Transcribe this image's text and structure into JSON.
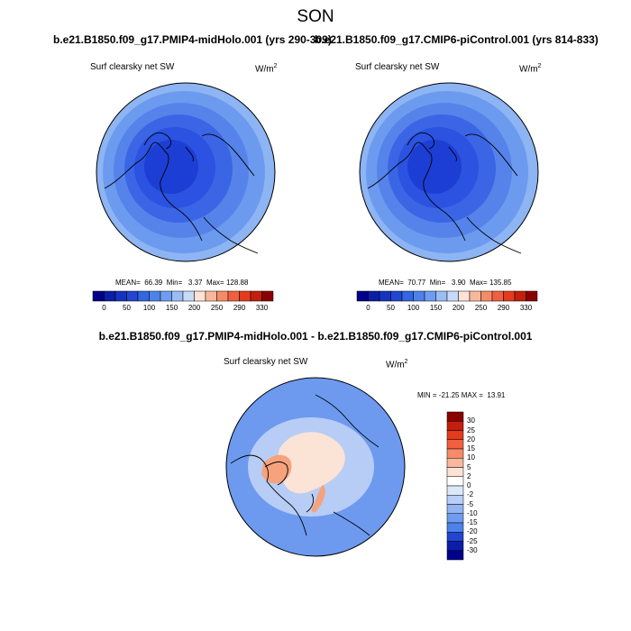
{
  "figure": {
    "title": "SON",
    "left_case": "b.e21.B1850.f09_g17.PMIP4-midHolo.001 (yrs 290-309)",
    "right_case": "b.e21.B1850.f09_g17.CMIP6-piControl.001 (yrs 814-833)",
    "diff_title": "b.e21.B1850.f09_g17.PMIP4-midHolo.001 - b.e21.B1850.f09_g17.CMIP6-piControl.001"
  },
  "panels": {
    "left": {
      "label": "Surf clearsky net SW",
      "units": "W/m",
      "units_exp": "2",
      "stats": "MEAN=  66.39  Min=   3.37  Max= 128.88"
    },
    "right": {
      "label": "Surf clearsky net SW",
      "units": "W/m",
      "units_exp": "2",
      "stats": "MEAN=  70.77  Min=   3.90  Max= 135.85"
    },
    "diff": {
      "label": "Surf clearsky net SW",
      "units": "W/m",
      "units_exp": "2",
      "stats": "MIN = -21.25 MAX =  13.91"
    }
  },
  "colorbars": {
    "main": {
      "colors": [
        "#00008b",
        "#0a1ea8",
        "#1533c0",
        "#2346d2",
        "#3366e0",
        "#4d82ea",
        "#6e9cf0",
        "#9bbdf5",
        "#c7dafa",
        "#fde2d6",
        "#f9b89c",
        "#f68b68",
        "#f06040",
        "#e43a1e",
        "#c41e0c",
        "#8b0000"
      ],
      "labels": [
        "0",
        "50",
        "100",
        "150",
        "200",
        "250",
        "290",
        "330"
      ]
    },
    "diff": {
      "colors": [
        "#8b0000",
        "#c41e0c",
        "#e43a1e",
        "#f06040",
        "#f68b68",
        "#f9b89c",
        "#fde2d6",
        "#ffffff",
        "#dce8fb",
        "#b8cff7",
        "#94b5f2",
        "#6e9cf0",
        "#4d82ea",
        "#2346d2",
        "#0a1ea8",
        "#00008b"
      ],
      "labels": [
        "30",
        "25",
        "20",
        "15",
        "10",
        "5",
        "2",
        "0",
        "-2",
        "-5",
        "-10",
        "-15",
        "-20",
        "-25",
        "-30"
      ]
    }
  },
  "colors": {
    "band1": "#1d3ed4",
    "band2": "#2b52e0",
    "band3": "#3a66e6",
    "band4": "#5583ea",
    "band5": "#6b9aef",
    "band6": "#8db4f3",
    "diff_bg": "#6d9aef",
    "diff_light": "#b7cdf6",
    "diff_pos": "#fbe3d5",
    "diff_warm": "#f6a27c"
  }
}
